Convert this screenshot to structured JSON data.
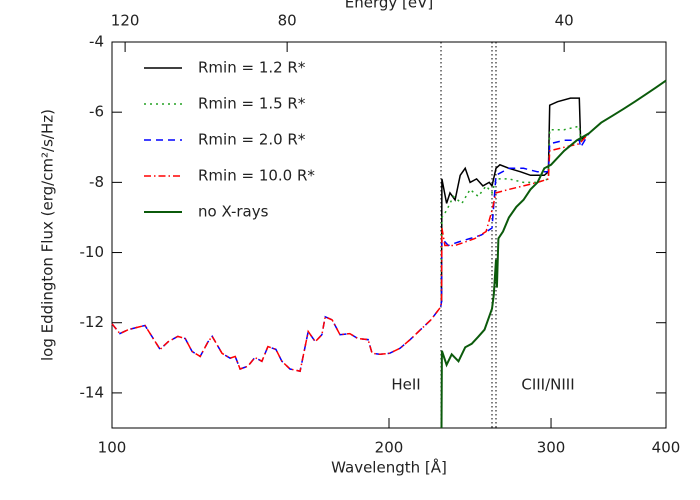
{
  "chart_data": {
    "type": "line",
    "x2label": "Energy [eV]",
    "xlabel": "Wavelength [Å]",
    "ylabel": "log Eddington Flux (erg/cm²/s/Hz)",
    "xscale": "log",
    "xlim": [
      100,
      400
    ],
    "xticks": [
      100,
      200,
      300,
      400
    ],
    "x2scale": "log",
    "x2lim": [
      124,
      31
    ],
    "x2ticks": [
      120,
      80,
      40
    ],
    "ylim": [
      -15,
      -4
    ],
    "yticks": [
      -4,
      -6,
      -8,
      -10,
      -12,
      -14
    ],
    "vlines": [
      227.8,
      258.8,
      261.4
    ],
    "annotations": [
      "HeII",
      "CIII/NIII"
    ],
    "legend": "upper left",
    "series": [
      {
        "name": "Rmin = 1.2 R*",
        "color": "#000000",
        "style": "solid",
        "x": [
          228.1,
          228.3,
          231,
          233,
          236,
          239,
          242,
          245,
          249,
          253,
          257,
          258.8,
          261.4,
          264,
          270,
          278,
          285,
          295,
          298,
          299,
          305,
          315,
          322,
          323,
          330
        ],
        "values": [
          -11.41,
          -7.9,
          -8.6,
          -8.3,
          -8.5,
          -7.8,
          -7.6,
          -8.0,
          -7.9,
          -8.1,
          -8.0,
          -8.1,
          -7.6,
          -7.5,
          -7.6,
          -7.7,
          -7.8,
          -7.8,
          -7.7,
          -5.8,
          -5.7,
          -5.6,
          -5.6,
          -6.8,
          -6.6
        ]
      },
      {
        "name": "Rmin = 1.5 R*",
        "color": "#22a022",
        "style": "dotted",
        "x": [
          228.1,
          228.3,
          231,
          235,
          240,
          245,
          250,
          255,
          258.8,
          261.4,
          270,
          280,
          290,
          298,
          299,
          310,
          322,
          323,
          330
        ],
        "values": [
          -11.41,
          -9.0,
          -8.8,
          -8.4,
          -8.6,
          -8.2,
          -8.4,
          -8.1,
          -8.3,
          -7.9,
          -7.9,
          -8.0,
          -8.0,
          -7.9,
          -6.5,
          -6.5,
          -6.4,
          -6.8,
          -6.6
        ]
      },
      {
        "name": "Rmin = 2.0 R*",
        "color": "#0000ff",
        "style": "dashed",
        "x": [
          100,
          102,
          104.1,
          107.3,
          108.6,
          110.5,
          112.8,
          115.1,
          117.9,
          120.1,
          122.2,
          124.7,
          127.2,
          128.5,
          131.7,
          134.4,
          136.1,
          137.8,
          140.5,
          143,
          145.5,
          147.7,
          150.7,
          153,
          156.1,
          160.1,
          163.4,
          166.3,
          169.1,
          170.5,
          173.5,
          176.9,
          181.3,
          185,
          189.8,
          191.7,
          195.4,
          200.3,
          205.6,
          210.9,
          216.4,
          222.1,
          227.6,
          228.1,
          228.3,
          232,
          238,
          245,
          252,
          258.8,
          261.4,
          270,
          280,
          290,
          298,
          299,
          310,
          322,
          323,
          330
        ],
        "values": [
          -12.03,
          -12.31,
          -12.2,
          -12.11,
          -12.08,
          -12.39,
          -12.76,
          -12.54,
          -12.39,
          -12.45,
          -12.82,
          -12.96,
          -12.54,
          -12.39,
          -12.87,
          -13.01,
          -12.96,
          -13.32,
          -13.24,
          -12.99,
          -13.1,
          -12.68,
          -12.76,
          -13.1,
          -13.32,
          -13.38,
          -12.25,
          -12.54,
          -12.34,
          -11.83,
          -11.92,
          -12.34,
          -12.31,
          -12.45,
          -12.48,
          -12.87,
          -12.9,
          -12.87,
          -12.73,
          -12.48,
          -12.2,
          -11.92,
          -11.55,
          -11.41,
          -9.6,
          -9.8,
          -9.7,
          -9.6,
          -9.5,
          -9.3,
          -7.8,
          -7.6,
          -7.6,
          -7.7,
          -7.7,
          -6.9,
          -6.8,
          -6.8,
          -7.0,
          -6.6
        ]
      },
      {
        "name": "Rmin = 10.0 R*",
        "color": "#ff0000",
        "style": "dashdot",
        "x": [
          100,
          102,
          104.1,
          107.3,
          108.6,
          110.5,
          112.8,
          115.1,
          117.9,
          120.1,
          122.2,
          124.7,
          127.2,
          128.5,
          131.7,
          134.4,
          136.1,
          137.8,
          140.5,
          143,
          145.5,
          147.7,
          150.7,
          153,
          156.1,
          160.1,
          163.4,
          166.3,
          169.1,
          170.5,
          173.5,
          176.9,
          181.3,
          185,
          189.8,
          191.7,
          195.4,
          200.3,
          205.6,
          210.9,
          216.4,
          222.1,
          227.6,
          228.1,
          228.3,
          230,
          236,
          242,
          248,
          255,
          258.8,
          261.4,
          270,
          280,
          290,
          298,
          299,
          310,
          322,
          330
        ],
        "values": [
          -12.03,
          -12.31,
          -12.2,
          -12.11,
          -12.08,
          -12.39,
          -12.76,
          -12.54,
          -12.39,
          -12.45,
          -12.82,
          -12.96,
          -12.54,
          -12.39,
          -12.87,
          -13.01,
          -12.96,
          -13.32,
          -13.24,
          -12.99,
          -13.1,
          -12.68,
          -12.76,
          -13.1,
          -13.32,
          -13.38,
          -12.25,
          -12.54,
          -12.34,
          -11.83,
          -11.92,
          -12.34,
          -12.31,
          -12.45,
          -12.48,
          -12.87,
          -12.9,
          -12.87,
          -12.73,
          -12.48,
          -12.2,
          -11.92,
          -11.55,
          -11.41,
          -9.3,
          -9.8,
          -9.8,
          -9.7,
          -9.6,
          -9.4,
          -8.8,
          -8.3,
          -8.2,
          -8.1,
          -8.0,
          -7.9,
          -7.1,
          -7.0,
          -6.9,
          -6.6
        ]
      },
      {
        "name": "no X-rays",
        "color": "#0b5a0b",
        "style": "solid",
        "x": [
          228.1,
          228.3,
          231,
          234,
          238,
          242,
          246,
          250,
          254,
          258.8,
          260,
          261.4,
          262,
          263,
          266,
          270,
          275,
          280,
          285,
          290,
          295,
          300,
          310,
          320,
          330,
          340,
          350,
          360,
          370,
          380,
          390,
          400
        ],
        "values": [
          -15,
          -12.8,
          -13.2,
          -12.9,
          -13.1,
          -12.7,
          -12.6,
          -12.4,
          -12.2,
          -11.6,
          -11.2,
          -10.2,
          -11,
          -9.6,
          -9.4,
          -9.0,
          -8.7,
          -8.5,
          -8.2,
          -8.0,
          -7.6,
          -7.5,
          -7.1,
          -6.8,
          -6.6,
          -6.3,
          -6.1,
          -5.9,
          -5.7,
          -5.5,
          -5.3,
          -5.1
        ]
      }
    ]
  }
}
